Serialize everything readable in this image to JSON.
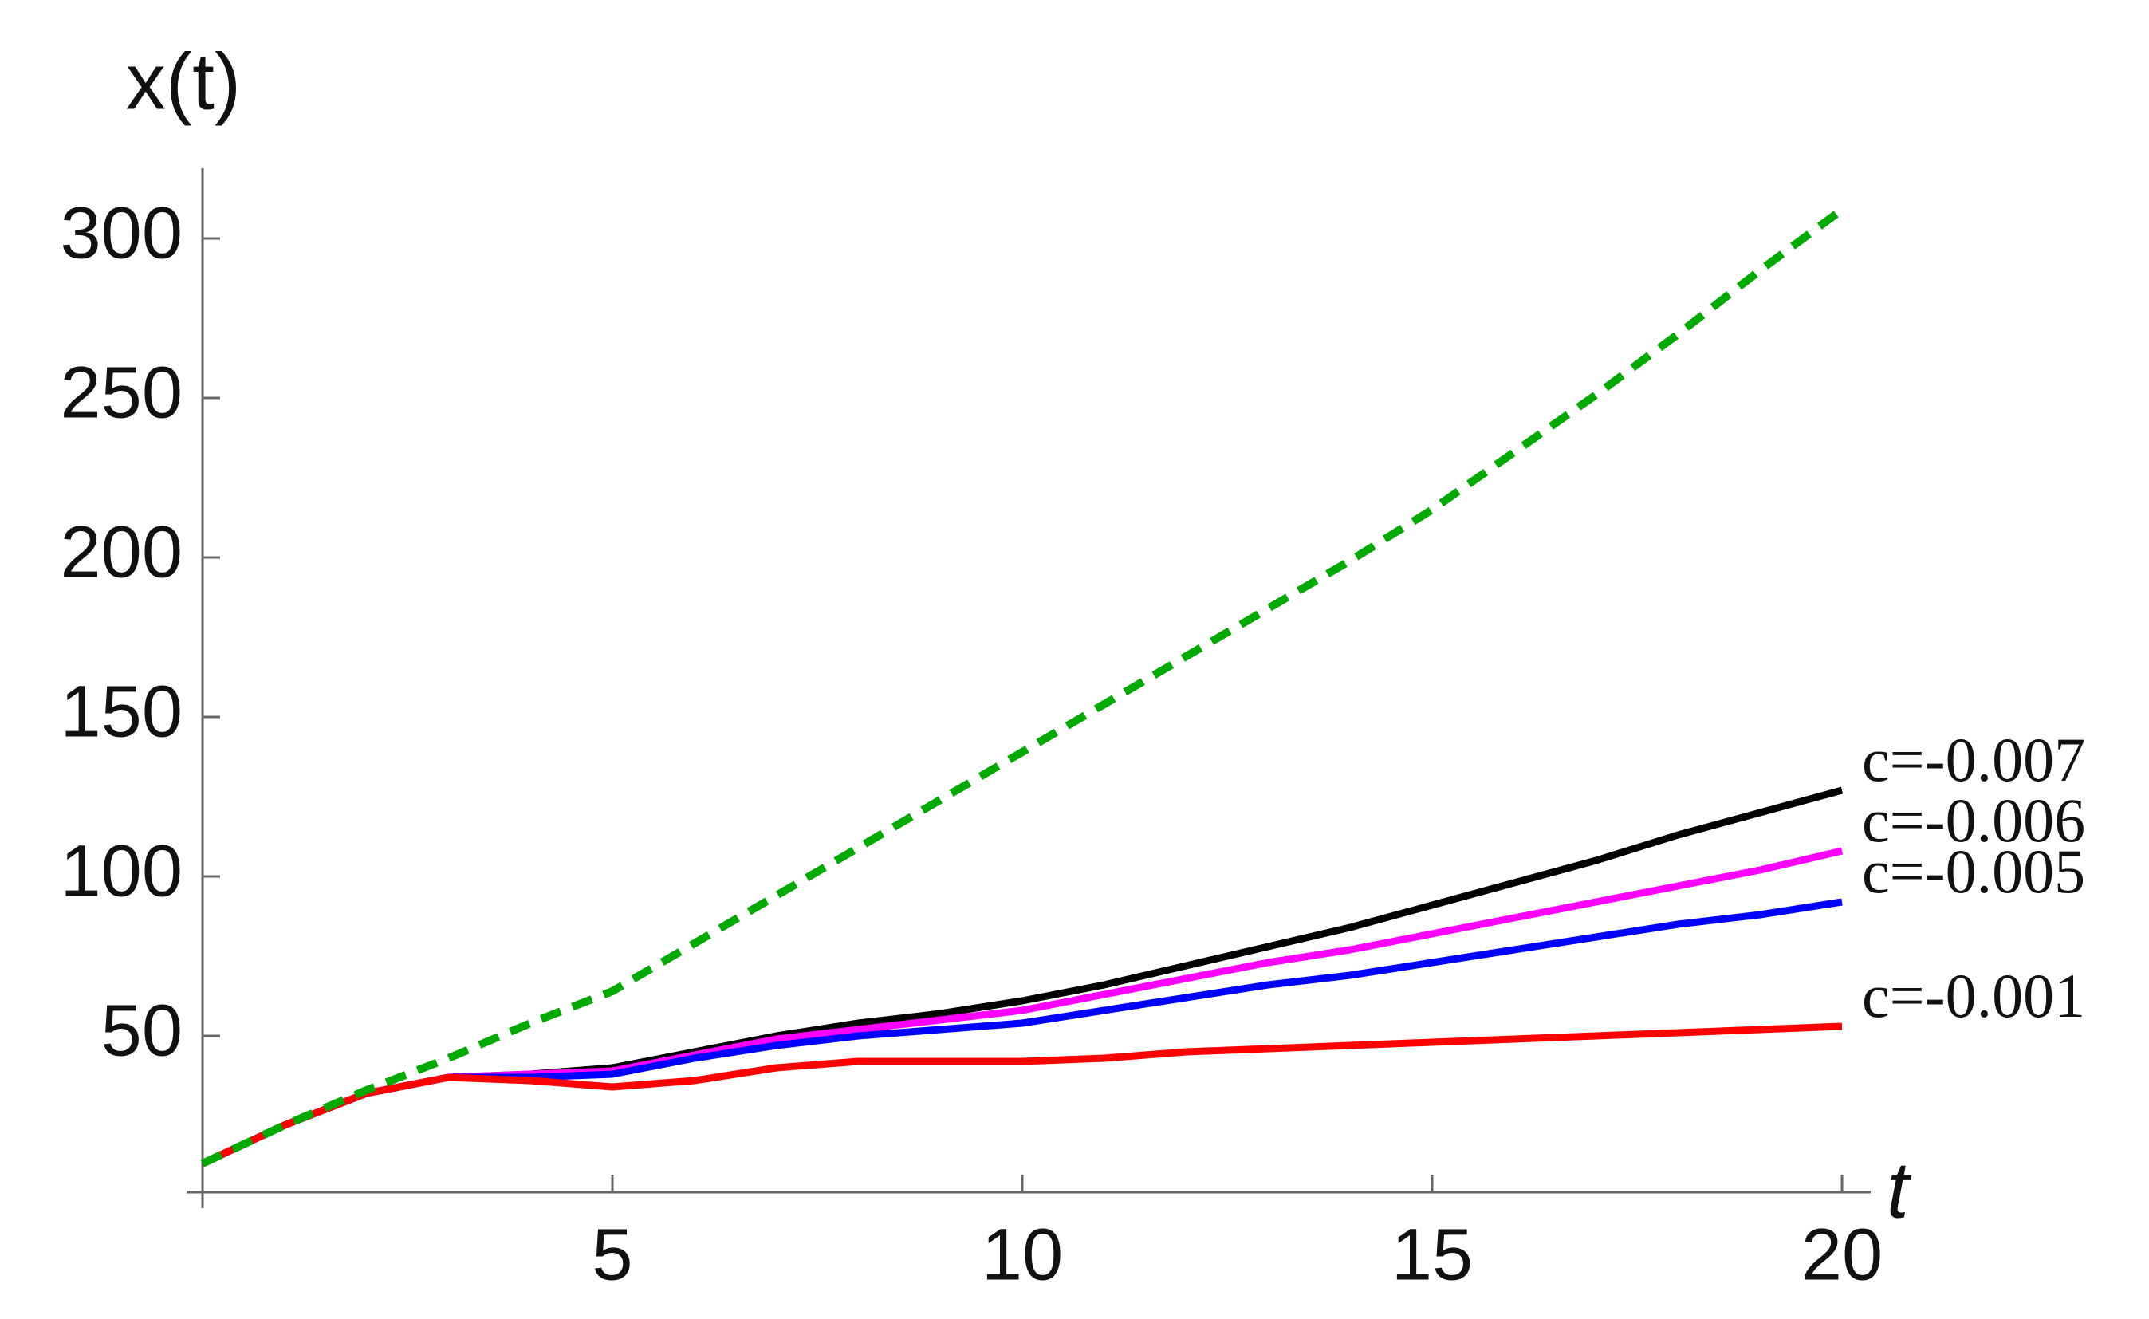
{
  "chart_data": {
    "type": "line",
    "x_label": "t",
    "y_label": "x(t)",
    "x": [
      0,
      1,
      2,
      3,
      4,
      5,
      6,
      7,
      8,
      9,
      10,
      11,
      12,
      13,
      14,
      15,
      16,
      17,
      18,
      19,
      20
    ],
    "series": [
      {
        "name": "c=-0.007",
        "color": "#000000",
        "values": [
          10,
          22,
          32,
          37,
          38,
          40,
          45,
          50,
          54,
          57,
          61,
          66,
          72,
          78,
          84,
          91,
          98,
          105,
          113,
          120,
          127
        ]
      },
      {
        "name": "c=-0.006",
        "color": "#ff00ff",
        "values": [
          10,
          22,
          32,
          37,
          38,
          39,
          44,
          49,
          52,
          55,
          58,
          63,
          68,
          73,
          77,
          82,
          87,
          92,
          97,
          102,
          108
        ]
      },
      {
        "name": "c=-0.005",
        "color": "#0000ff",
        "values": [
          10,
          22,
          32,
          37,
          37,
          38,
          43,
          47,
          50,
          52,
          54,
          58,
          62,
          66,
          69,
          73,
          77,
          81,
          85,
          88,
          92
        ]
      },
      {
        "name": "c=-0.001",
        "color": "#ff0000",
        "values": [
          10,
          22,
          32,
          37,
          36,
          34,
          36,
          40,
          42,
          42,
          42,
          43,
          45,
          46,
          47,
          48,
          49,
          50,
          51,
          52,
          53
        ]
      },
      {
        "color": "#00aa00",
        "dashed": true,
        "values": [
          10,
          22,
          33,
          43,
          54,
          64,
          79,
          94,
          109,
          124,
          139,
          154,
          169,
          184,
          199,
          215,
          233,
          251,
          270,
          290,
          309
        ]
      }
    ],
    "xlim": [
      0,
      20.35
    ],
    "ylim": [
      1,
      322
    ],
    "xticks": [
      5,
      10,
      15,
      20
    ],
    "yticks": [
      50,
      100,
      150,
      200,
      250,
      300
    ]
  }
}
